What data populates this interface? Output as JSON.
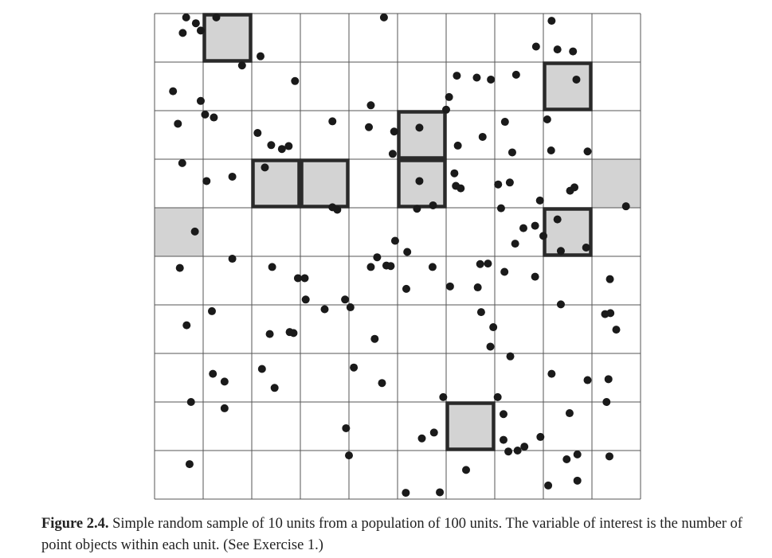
{
  "figure": {
    "grid_rows": 10,
    "grid_cols": 10,
    "colors": {
      "grid_line": "#555555",
      "sample_fill": "#d3d3d3",
      "sample_border": "#2a2a2a",
      "point": "#1a1a1a"
    },
    "sampled_units_with_border": [
      {
        "row": 0,
        "col": 1
      },
      {
        "row": 1,
        "col": 8
      },
      {
        "row": 2,
        "col": 5
      },
      {
        "row": 3,
        "col": 2
      },
      {
        "row": 3,
        "col": 3
      },
      {
        "row": 3,
        "col": 5
      },
      {
        "row": 4,
        "col": 8
      },
      {
        "row": 8,
        "col": 6
      }
    ],
    "sampled_units_edge": [
      {
        "row": 3,
        "col": 9
      },
      {
        "row": 4,
        "col": 0
      }
    ],
    "points": [
      [
        0.65,
        0.08
      ],
      [
        0.85,
        0.2
      ],
      [
        0.95,
        0.35
      ],
      [
        1.27,
        0.08
      ],
      [
        0.58,
        0.4
      ],
      [
        4.72,
        0.08
      ],
      [
        8.17,
        0.15
      ],
      [
        7.85,
        0.68
      ],
      [
        8.29,
        0.74
      ],
      [
        8.61,
        0.78
      ],
      [
        2.18,
        0.88
      ],
      [
        1.8,
        1.07
      ],
      [
        0.38,
        1.6
      ],
      [
        0.95,
        1.8
      ],
      [
        1.04,
        2.08
      ],
      [
        1.22,
        2.14
      ],
      [
        2.89,
        1.39
      ],
      [
        6.22,
        1.28
      ],
      [
        6.63,
        1.32
      ],
      [
        6.92,
        1.36
      ],
      [
        7.44,
        1.26
      ],
      [
        8.68,
        1.36
      ],
      [
        4.45,
        1.89
      ],
      [
        6.06,
        1.72
      ],
      [
        6.0,
        1.98
      ],
      [
        0.48,
        2.27
      ],
      [
        2.12,
        2.46
      ],
      [
        2.4,
        2.71
      ],
      [
        2.62,
        2.79
      ],
      [
        2.76,
        2.73
      ],
      [
        3.66,
        2.22
      ],
      [
        4.41,
        2.34
      ],
      [
        4.93,
        2.43
      ],
      [
        5.45,
        2.35
      ],
      [
        6.24,
        2.72
      ],
      [
        6.75,
        2.54
      ],
      [
        7.21,
        2.23
      ],
      [
        7.36,
        2.86
      ],
      [
        8.08,
        2.18
      ],
      [
        8.16,
        2.82
      ],
      [
        8.91,
        2.84
      ],
      [
        4.9,
        2.89
      ],
      [
        0.57,
        3.08
      ],
      [
        1.07,
        3.45
      ],
      [
        1.6,
        3.36
      ],
      [
        2.27,
        3.17
      ],
      [
        3.66,
        3.99
      ],
      [
        3.76,
        4.04
      ],
      [
        5.45,
        3.45
      ],
      [
        6.17,
        3.29
      ],
      [
        6.2,
        3.55
      ],
      [
        6.3,
        3.6
      ],
      [
        7.07,
        3.52
      ],
      [
        7.31,
        3.48
      ],
      [
        7.93,
        3.85
      ],
      [
        8.55,
        3.65
      ],
      [
        8.64,
        3.58
      ],
      [
        5.4,
        4.02
      ],
      [
        5.73,
        3.95
      ],
      [
        0.83,
        4.49
      ],
      [
        1.6,
        5.05
      ],
      [
        4.95,
        4.68
      ],
      [
        5.2,
        4.91
      ],
      [
        4.77,
        5.19
      ],
      [
        4.58,
        5.02
      ],
      [
        4.45,
        5.22
      ],
      [
        4.86,
        5.2
      ],
      [
        7.13,
        4.01
      ],
      [
        7.59,
        4.42
      ],
      [
        7.42,
        4.74
      ],
      [
        7.83,
        4.37
      ],
      [
        8.0,
        4.58
      ],
      [
        8.29,
        4.24
      ],
      [
        8.36,
        4.89
      ],
      [
        8.88,
        4.82
      ],
      [
        9.7,
        3.97
      ],
      [
        0.52,
        5.24
      ],
      [
        2.42,
        5.22
      ],
      [
        2.95,
        5.45
      ],
      [
        3.09,
        5.45
      ],
      [
        3.11,
        5.89
      ],
      [
        3.92,
        5.89
      ],
      [
        5.18,
        5.67
      ],
      [
        5.72,
        5.22
      ],
      [
        6.08,
        5.62
      ],
      [
        6.65,
        5.64
      ],
      [
        6.7,
        5.16
      ],
      [
        6.86,
        5.15
      ],
      [
        7.2,
        5.32
      ],
      [
        7.83,
        5.42
      ],
      [
        9.37,
        5.47
      ],
      [
        0.66,
        6.42
      ],
      [
        1.18,
        6.13
      ],
      [
        2.37,
        6.6
      ],
      [
        2.78,
        6.56
      ],
      [
        2.86,
        6.58
      ],
      [
        3.5,
        6.09
      ],
      [
        4.03,
        6.05
      ],
      [
        4.53,
        6.7
      ],
      [
        6.72,
        6.15
      ],
      [
        6.91,
        6.86
      ],
      [
        6.97,
        6.46
      ],
      [
        8.36,
        5.99
      ],
      [
        9.5,
        6.51
      ],
      [
        9.38,
        6.17
      ],
      [
        9.27,
        6.19
      ],
      [
        1.2,
        7.42
      ],
      [
        1.44,
        7.58
      ],
      [
        2.21,
        7.32
      ],
      [
        2.47,
        7.71
      ],
      [
        4.1,
        7.29
      ],
      [
        4.68,
        7.61
      ],
      [
        7.32,
        7.06
      ],
      [
        8.17,
        7.42
      ],
      [
        8.91,
        7.55
      ],
      [
        9.34,
        7.53
      ],
      [
        0.75,
        8.0
      ],
      [
        1.44,
        8.13
      ],
      [
        5.94,
        7.9
      ],
      [
        7.06,
        7.9
      ],
      [
        7.18,
        8.25
      ],
      [
        8.54,
        8.23
      ],
      [
        9.3,
        8.0
      ],
      [
        3.94,
        8.54
      ],
      [
        4.0,
        9.1
      ],
      [
        5.5,
        8.75
      ],
      [
        5.75,
        8.63
      ],
      [
        7.18,
        8.78
      ],
      [
        7.28,
        9.02
      ],
      [
        7.47,
        9.0
      ],
      [
        7.61,
        8.92
      ],
      [
        7.94,
        8.72
      ],
      [
        8.48,
        9.18
      ],
      [
        8.7,
        9.08
      ],
      [
        9.36,
        9.12
      ],
      [
        6.41,
        9.4
      ],
      [
        8.7,
        9.62
      ],
      [
        8.1,
        9.72
      ],
      [
        0.72,
        9.28
      ],
      [
        5.17,
        9.87
      ],
      [
        5.87,
        9.86
      ]
    ]
  },
  "caption": {
    "label": "Figure 2.4.",
    "text": "Simple random sample of 10 units from a population of 100 units. The variable of interest is the number of point objects within each unit. (See Exercise 1.)"
  }
}
